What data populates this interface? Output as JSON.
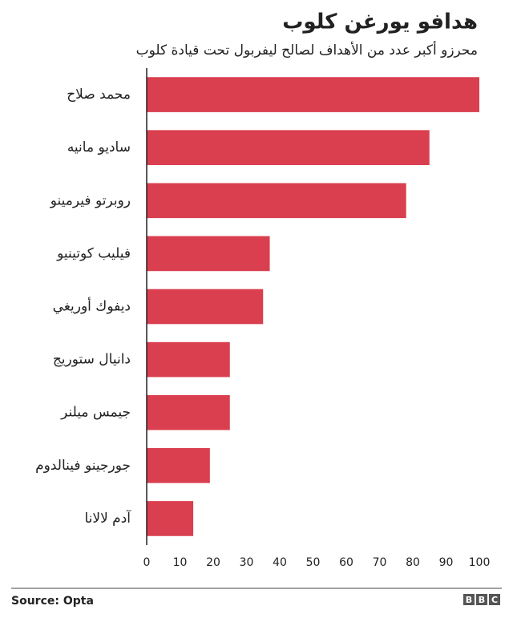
{
  "chart_data": {
    "type": "hbar",
    "title": "هدافو يورغن كلوب",
    "subtitle": "محرزو أكبر عدد من الأهداف لصالح ليفربول تحت قيادة كلوب",
    "categories": [
      "محمد صلاح",
      "ساديو مانيه",
      "روبرتو فيرمينو",
      "فيليب كوتينيو",
      "ديفوك أوريغي",
      "دانيال ستوريج",
      "جيمس ميلنر",
      "جورجينو فينالدوم",
      "آدم لالانا"
    ],
    "values": [
      100,
      85,
      78,
      37,
      35,
      25,
      25,
      19,
      14
    ],
    "color": "#da3f4f",
    "xlim": [
      0,
      100
    ],
    "xticks": [
      0,
      10,
      20,
      30,
      40,
      50,
      60,
      70,
      80,
      90,
      100
    ],
    "grid": false,
    "source": "Source: Opta",
    "logo": [
      "B",
      "B",
      "C"
    ]
  }
}
